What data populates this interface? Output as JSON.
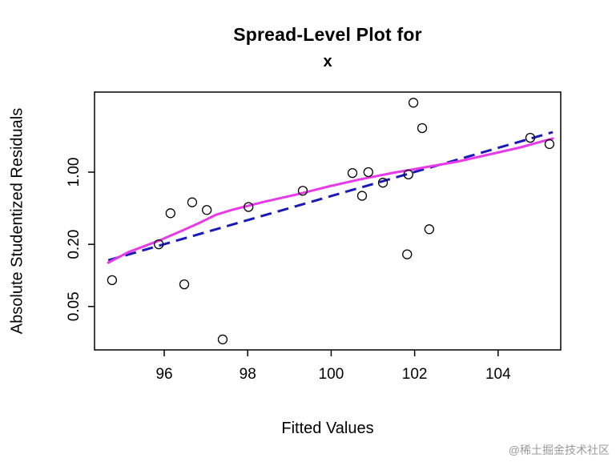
{
  "watermark": "@稀土掘金技术社区",
  "chart_data": {
    "type": "scatter",
    "title": "Spread-Level Plot for",
    "subtitle": "x",
    "xlabel": "Fitted Values",
    "ylabel": "Absolute Studentized Residuals",
    "x_ticks": [
      96,
      98,
      100,
      102,
      104
    ],
    "y_ticks": [
      0.05,
      0.2,
      1.0
    ],
    "y_tick_labels": [
      "0.05",
      "0.20",
      "1.00"
    ],
    "xlim": [
      94.33,
      105.5
    ],
    "ylim": [
      0.019,
      5.96
    ],
    "y_scale": "log",
    "grid": false,
    "legend": "none",
    "point_color": "#000000",
    "points": [
      [
        94.75,
        0.09
      ],
      [
        95.87,
        0.2
      ],
      [
        96.15,
        0.4
      ],
      [
        96.48,
        0.082
      ],
      [
        96.67,
        0.51
      ],
      [
        97.02,
        0.43
      ],
      [
        97.4,
        0.024
      ],
      [
        98.02,
        0.46
      ],
      [
        99.32,
        0.66
      ],
      [
        100.51,
        0.98
      ],
      [
        100.74,
        0.59
      ],
      [
        100.89,
        1.0
      ],
      [
        101.24,
        0.79
      ],
      [
        101.82,
        0.16
      ],
      [
        101.85,
        0.95
      ],
      [
        101.97,
        4.7
      ],
      [
        102.18,
        2.67
      ],
      [
        102.35,
        0.28
      ],
      [
        104.77,
        2.15
      ],
      [
        105.23,
        1.87
      ]
    ],
    "regression_line": {
      "name": "log-linear-fit",
      "style": "dashed",
      "color": "#1a1ab8",
      "points": [
        [
          94.66,
          0.14
        ],
        [
          105.31,
          2.44
        ]
      ]
    },
    "smooth_line": {
      "name": "lowess-smooth",
      "style": "solid",
      "color": "#e83ae8",
      "points": [
        [
          94.66,
          0.133
        ],
        [
          95.14,
          0.168
        ],
        [
          95.9,
          0.219
        ],
        [
          96.48,
          0.277
        ],
        [
          96.86,
          0.325
        ],
        [
          97.25,
          0.388
        ],
        [
          97.63,
          0.432
        ],
        [
          98.4,
          0.517
        ],
        [
          99.17,
          0.607
        ],
        [
          99.93,
          0.725
        ],
        [
          100.7,
          0.852
        ],
        [
          101.47,
          0.982
        ],
        [
          102.24,
          1.113
        ],
        [
          103.01,
          1.261
        ],
        [
          103.78,
          1.481
        ],
        [
          104.54,
          1.739
        ],
        [
          105.31,
          2.117
        ]
      ]
    }
  }
}
